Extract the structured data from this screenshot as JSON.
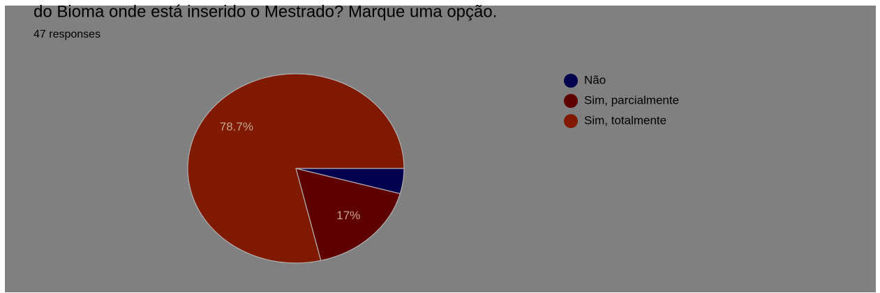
{
  "chart_data": {
    "type": "pie",
    "title": "do Bioma onde está inserido o Mestrado? Marque uma opção.",
    "subtitle": "47 responses",
    "categories": [
      "Não",
      "Sim, parcialmente",
      "Sim, totalmente"
    ],
    "values": [
      4.3,
      17,
      78.7
    ],
    "value_labels": [
      null,
      "17%",
      "78.7%"
    ],
    "colors": [
      "#00004f",
      "#5e0000",
      "#7f1a00"
    ]
  }
}
